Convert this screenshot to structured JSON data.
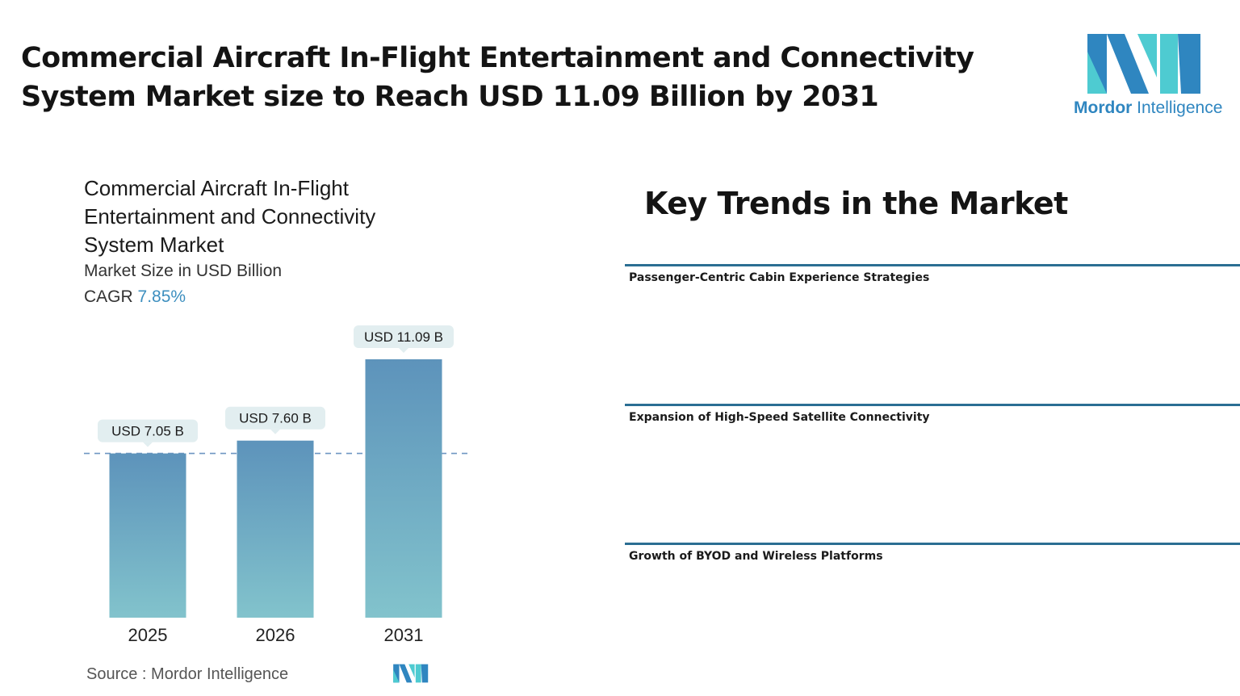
{
  "header": {
    "headline_line1": "Commercial Aircraft In-Flight Entertainment and Connectivity",
    "headline_line2": "System Market size to Reach USD 11.09 Billion by 2031"
  },
  "logo": {
    "brand_bold": "Mordor",
    "brand_light": " Intelligence",
    "icon": "mordor-intelligence-mark",
    "colors": {
      "dark_blue": "#2f86c0",
      "teal": "#4ecbd1"
    }
  },
  "chart_data": {
    "type": "bar",
    "title": "Commercial Aircraft In-Flight Entertainment and Connectivity System Market",
    "subtitle": "Market Size in USD Billion",
    "cagr_label": "CAGR",
    "cagr_value": "7.85%",
    "categories": [
      "2025",
      "2026",
      "2031"
    ],
    "values": [
      7.05,
      7.6,
      11.09
    ],
    "data_labels": [
      "USD 7.05 B",
      "USD 7.60 B",
      "USD 11.09 B"
    ],
    "ylim": [
      0,
      11.09
    ],
    "reference_line": 7.05,
    "grid": false,
    "bar_gradient": {
      "top": "#5d93bb",
      "bottom": "#82c3cc"
    },
    "label_bg": "#e2eef0",
    "source": "Source :  Mordor Intelligence"
  },
  "trends": {
    "title": "Key Trends in the Market",
    "items": [
      {
        "label": "Passenger-Centric Cabin Experience Strategies"
      },
      {
        "label": "Expansion of High-Speed Satellite Connectivity"
      },
      {
        "label": "Growth of BYOD and Wireless Platforms"
      }
    ],
    "line_color": "#2b6e93"
  }
}
